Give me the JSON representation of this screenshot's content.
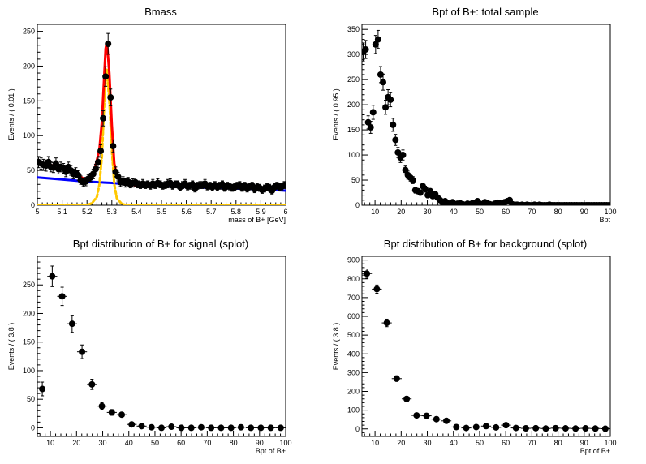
{
  "chart_data": [
    {
      "id": "p1",
      "type": "scatter",
      "title": "Bmass",
      "xlabel": "mass of B+ [GeV]",
      "ylabel": "Events / ( 0.01 )",
      "xlim": [
        5,
        6
      ],
      "ylim": [
        0,
        260
      ],
      "xticks": [
        5,
        5.1,
        5.2,
        5.3,
        5.4,
        5.5,
        5.6,
        5.7,
        5.8,
        5.9,
        6
      ],
      "xtick_labels": [
        "5",
        "5.1",
        "5.2",
        "5.3",
        "5.4",
        "5.5",
        "5.6",
        "5.7",
        "5.8",
        "5.9",
        "6"
      ],
      "yticks": [
        0,
        50,
        100,
        150,
        200,
        250
      ],
      "ytick_labels": [
        "0",
        "50",
        "100",
        "150",
        "200",
        "250"
      ],
      "series": [
        {
          "kind": "points",
          "x_start": 5.005,
          "x_step": 0.01,
          "x_halfwidth": 0.005,
          "y": [
            62,
            60,
            58,
            57,
            62,
            55,
            54,
            60,
            52,
            55,
            53,
            48,
            55,
            50,
            45,
            47,
            43,
            36,
            33,
            34,
            38,
            40,
            45,
            52,
            62,
            78,
            125,
            185,
            232,
            155,
            85,
            48,
            41,
            33,
            35,
            32,
            34,
            30,
            32,
            33,
            30,
            29,
            31,
            29,
            30,
            28,
            31,
            29,
            32,
            30,
            28,
            29,
            31,
            32,
            28,
            30,
            30,
            26,
            29,
            31,
            27,
            28,
            30,
            24,
            28,
            29,
            29,
            31,
            27,
            28,
            26,
            29,
            26,
            28,
            30,
            25,
            28,
            27,
            25,
            26,
            28,
            29,
            25,
            28,
            24,
            27,
            28,
            23,
            26,
            25,
            22,
            24,
            26,
            25,
            21,
            26,
            28,
            26,
            27,
            29
          ],
          "yerr": [
            8,
            8,
            8,
            8,
            8,
            7,
            7,
            8,
            7,
            7,
            7,
            7,
            7,
            7,
            7,
            7,
            7,
            6,
            6,
            6,
            6,
            6,
            7,
            7,
            8,
            9,
            11,
            14,
            15,
            12,
            9,
            7,
            6,
            6,
            6,
            6,
            6,
            5,
            6,
            6,
            5,
            5,
            6,
            5,
            5,
            5,
            6,
            5,
            6,
            5,
            5,
            5,
            6,
            6,
            5,
            5,
            5,
            5,
            5,
            6,
            5,
            5,
            5,
            5,
            5,
            5,
            5,
            6,
            5,
            5,
            5,
            5,
            5,
            5,
            5,
            5,
            5,
            5,
            5,
            5,
            5,
            5,
            5,
            5,
            5,
            5,
            5,
            5,
            5,
            5,
            5,
            5,
            5,
            5,
            5,
            5,
            5,
            5,
            5,
            5
          ],
          "color": "#000000"
        },
        {
          "kind": "curve",
          "color": "#0000ff",
          "x": [
            5,
            5.1,
            5.2,
            5.3,
            5.4,
            5.5,
            5.6,
            5.7,
            5.8,
            5.9,
            6
          ],
          "y": [
            40,
            37,
            34,
            32,
            29,
            28,
            26,
            25,
            24,
            23,
            21
          ]
        },
        {
          "kind": "curve",
          "color": "#ffc800",
          "dashed": true,
          "x": [
            5.0,
            5.2,
            5.22,
            5.24,
            5.25,
            5.26,
            5.27,
            5.275,
            5.28,
            5.29,
            5.3,
            5.31,
            5.32,
            5.34,
            5.36,
            5.4,
            6.0
          ],
          "y": [
            0,
            0,
            3,
            12,
            30,
            70,
            150,
            185,
            195,
            150,
            80,
            30,
            10,
            2,
            0,
            0,
            0
          ]
        },
        {
          "kind": "curve",
          "color": "#ff0000",
          "x": [
            5.0,
            5.02,
            5.05,
            5.08,
            5.1,
            5.12,
            5.15,
            5.17,
            5.19,
            5.21,
            5.23,
            5.25,
            5.26,
            5.27,
            5.275,
            5.28,
            5.29,
            5.3,
            5.31,
            5.32,
            5.34,
            5.36,
            5.4
          ],
          "y": [
            60,
            58,
            57,
            58,
            56,
            54,
            47,
            41,
            38,
            39,
            50,
            80,
            120,
            190,
            225,
            235,
            190,
            115,
            60,
            42,
            32,
            30,
            29
          ]
        }
      ]
    },
    {
      "id": "p2",
      "type": "scatter",
      "title": "Bpt of B+: total sample",
      "xlabel": "Bpt",
      "ylabel": "Events / ( 0.95 )",
      "xlim": [
        5,
        100
      ],
      "ylim": [
        0,
        360
      ],
      "xticks": [
        10,
        20,
        30,
        40,
        50,
        60,
        70,
        80,
        90,
        100
      ],
      "xtick_labels": [
        "10",
        "20",
        "30",
        "40",
        "50",
        "60",
        "70",
        "80",
        "90",
        "100"
      ],
      "yticks": [
        0,
        50,
        100,
        150,
        200,
        250,
        300,
        350
      ],
      "ytick_labels": [
        "0",
        "50",
        "100",
        "150",
        "200",
        "250",
        "300",
        "350"
      ],
      "series": [
        {
          "kind": "points",
          "x_start": 5.475,
          "x_step": 0.95,
          "x_halfwidth": 0.475,
          "y": [
            305,
            310,
            165,
            155,
            185,
            320,
            330,
            260,
            245,
            195,
            215,
            210,
            160,
            130,
            105,
            95,
            100,
            70,
            60,
            55,
            50,
            30,
            28,
            25,
            38,
            32,
            20,
            28,
            18,
            22,
            15,
            10,
            5,
            8,
            4,
            3,
            6,
            2,
            3,
            4,
            2,
            1,
            3,
            2,
            4,
            5,
            8,
            3,
            2,
            6,
            4,
            2,
            1,
            3,
            5,
            4,
            2,
            6,
            8,
            10,
            2,
            1,
            1,
            0,
            1,
            0,
            1,
            0,
            0,
            1,
            0,
            1,
            0,
            0,
            0,
            1,
            0,
            0,
            0,
            0,
            0,
            0,
            0,
            0,
            0,
            0,
            0,
            0,
            0,
            0,
            0,
            0,
            0,
            0,
            0,
            0,
            0,
            0,
            0,
            0
          ],
          "yerr": [
            18,
            18,
            13,
            12,
            14,
            18,
            18,
            16,
            16,
            14,
            15,
            14,
            13,
            11,
            10,
            10,
            10,
            8,
            8,
            7,
            7,
            6,
            5,
            5,
            6,
            6,
            5,
            5,
            4,
            5,
            4,
            3,
            2,
            3,
            2,
            2,
            2,
            1,
            2,
            2,
            1,
            1,
            2,
            1,
            2,
            2,
            3,
            2,
            1,
            2,
            2,
            1,
            1,
            2,
            2,
            2,
            1,
            2,
            3,
            3,
            1,
            1,
            1,
            0,
            1,
            0,
            1,
            0,
            0,
            1,
            0,
            1,
            0,
            0,
            0,
            1,
            0,
            0,
            0,
            0,
            0,
            0,
            0,
            0,
            0,
            0,
            0,
            0,
            0,
            0,
            0,
            0,
            0,
            0,
            0,
            0,
            0,
            0,
            0,
            0
          ],
          "color": "#000000"
        }
      ]
    },
    {
      "id": "p3",
      "type": "scatter",
      "title": "Bpt distribution of B+ for signal (splot)",
      "xlabel": "Bpt of B+",
      "ylabel": "Events / ( 3.8 )",
      "xlim": [
        5,
        100
      ],
      "ylim": [
        -15,
        300
      ],
      "xticks": [
        10,
        20,
        30,
        40,
        50,
        60,
        70,
        80,
        90,
        100
      ],
      "xtick_labels": [
        "10",
        "20",
        "30",
        "40",
        "50",
        "60",
        "70",
        "80",
        "90",
        "100"
      ],
      "yticks": [
        0,
        50,
        100,
        150,
        200,
        250
      ],
      "ytick_labels": [
        "0",
        "50",
        "100",
        "150",
        "200",
        "250"
      ],
      "series": [
        {
          "kind": "points",
          "x_start": 6.9,
          "x_step": 3.8,
          "x_halfwidth": 1.9,
          "y": [
            68,
            265,
            230,
            182,
            133,
            76,
            38,
            27,
            23,
            6,
            3,
            1,
            0,
            2,
            0,
            0,
            1,
            0,
            0,
            0,
            1,
            0,
            0,
            0,
            0
          ],
          "yerr": [
            12,
            18,
            16,
            15,
            12,
            9,
            6,
            5,
            4,
            3,
            2,
            2,
            1,
            2,
            1,
            1,
            1,
            1,
            1,
            1,
            1,
            1,
            1,
            1,
            1
          ],
          "color": "#000000"
        }
      ]
    },
    {
      "id": "p4",
      "type": "scatter",
      "title": "Bpt distribution of B+ for background (splot)",
      "xlabel": "Bpt of B+",
      "ylabel": "Events / ( 3.8 )",
      "xlim": [
        5,
        100
      ],
      "ylim": [
        -40,
        920
      ],
      "xticks": [
        10,
        20,
        30,
        40,
        50,
        60,
        70,
        80,
        90,
        100
      ],
      "xtick_labels": [
        "10",
        "20",
        "30",
        "40",
        "50",
        "60",
        "70",
        "80",
        "90",
        "100"
      ],
      "yticks": [
        0,
        100,
        200,
        300,
        400,
        500,
        600,
        700,
        800,
        900
      ],
      "ytick_labels": [
        "0",
        "100",
        "200",
        "300",
        "400",
        "500",
        "600",
        "700",
        "800",
        "900"
      ],
      "series": [
        {
          "kind": "points",
          "x_start": 6.9,
          "x_step": 3.8,
          "x_halfwidth": 1.9,
          "y": [
            828,
            745,
            565,
            268,
            160,
            72,
            70,
            52,
            43,
            10,
            5,
            10,
            15,
            8,
            20,
            5,
            3,
            4,
            2,
            4,
            3,
            2,
            3,
            2,
            1
          ],
          "yerr": [
            25,
            22,
            20,
            15,
            12,
            8,
            8,
            7,
            6,
            3,
            2,
            3,
            4,
            3,
            4,
            2,
            2,
            2,
            1,
            2,
            2,
            1,
            2,
            1,
            1
          ],
          "color": "#000000"
        }
      ]
    }
  ]
}
